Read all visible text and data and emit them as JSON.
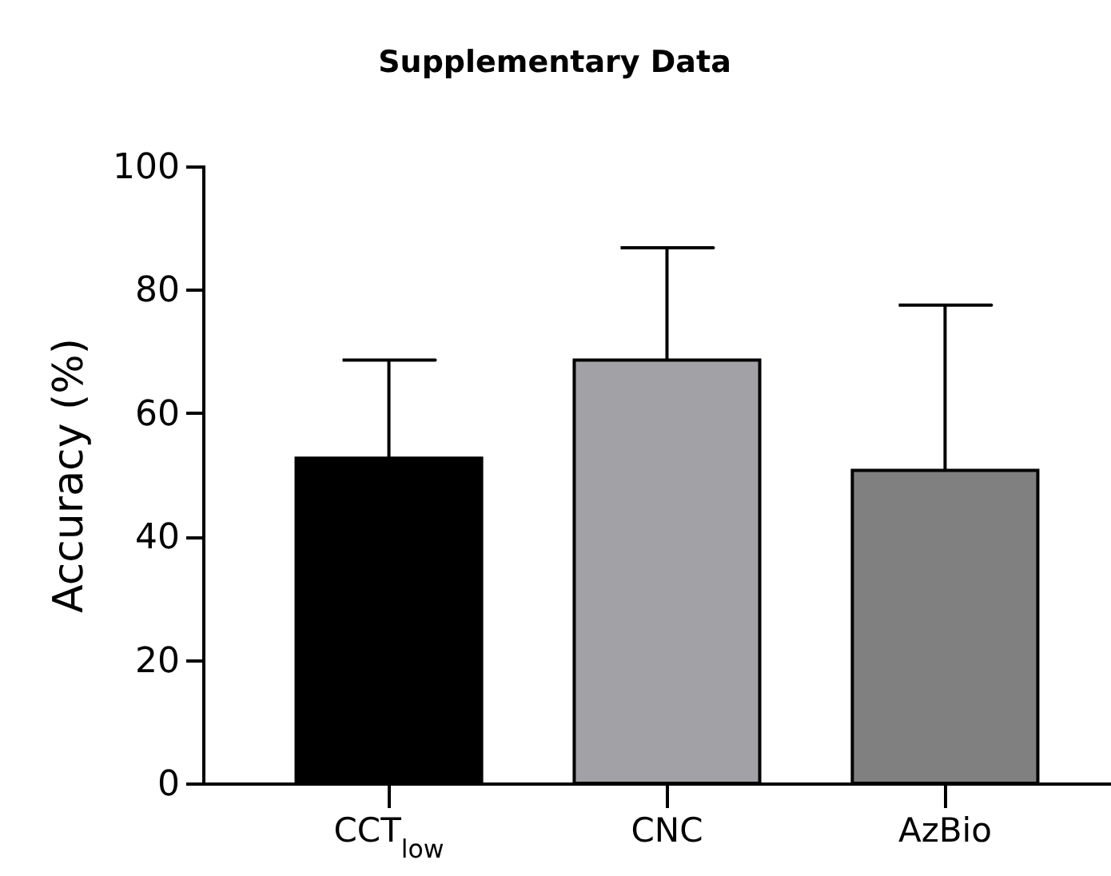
{
  "chart_data": {
    "type": "bar",
    "title": "Supplementary Data",
    "ylabel": "Accuracy (%)",
    "categories": [
      "CCT$_{low}$",
      "CNC",
      "AzBio"
    ],
    "values": [
      52.7,
      68.6,
      50.7
    ],
    "colors": [
      "#000000",
      "#a2a1a6",
      "#808080"
    ],
    "errors": [
      [
        52.7,
        68.6
      ],
      [
        68.6,
        86.8
      ],
      [
        50.7,
        77.5
      ]
    ],
    "ylim": [
      0,
      100
    ],
    "yticks": [
      0,
      20,
      40,
      60,
      80,
      100
    ],
    "grid": false
  }
}
